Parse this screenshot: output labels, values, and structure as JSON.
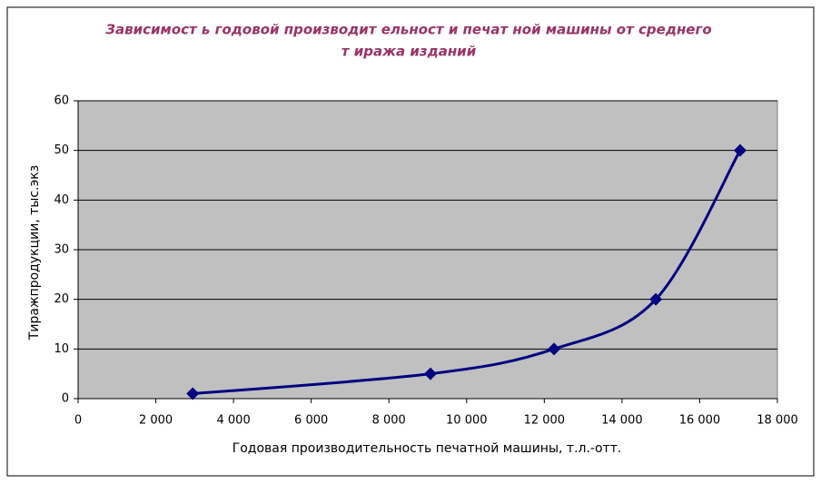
{
  "chart_data": {
    "type": "line",
    "title": [
      "Зависимост ь годовой производит ельност и печат ной машины от  среднего",
      "т иража изданий"
    ],
    "x_label": "Годовая производительность печатной машины, т.л.-отт.",
    "y_label": "Тиражпродукции, тыс.экз",
    "x": [
      2950,
      9070,
      12250,
      14870,
      17040
    ],
    "series": [
      {
        "color": "#000080",
        "values": [
          1,
          5,
          10,
          20,
          50
        ]
      }
    ],
    "xlim": [
      0,
      18000
    ],
    "xticks": [
      0,
      {
        "value": 2000,
        "label": "2 000"
      },
      {
        "value": 4000,
        "label": "4 000"
      },
      {
        "value": 6000,
        "label": "6 000"
      },
      {
        "value": 8000,
        "label": "8 000"
      },
      {
        "value": 10000,
        "label": "10 000"
      },
      {
        "value": 12000,
        "label": "12 000"
      },
      {
        "value": 14000,
        "label": "14 000"
      },
      {
        "value": 16000,
        "label": "16 000"
      },
      {
        "value": 18000,
        "label": "18 000"
      }
    ],
    "ylim": [
      0,
      60
    ],
    "yticks": [
      0,
      10,
      20,
      30,
      40,
      50,
      60
    ],
    "grid": true,
    "smooth": true
  }
}
